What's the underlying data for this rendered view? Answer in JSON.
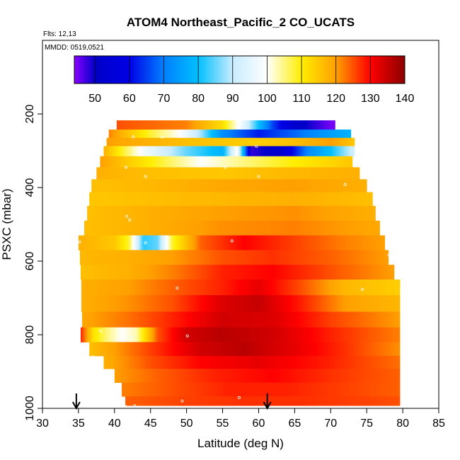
{
  "meta": {
    "flights": "Flts: 12,13",
    "dates": "MMDD: 0519,0521"
  },
  "chart_data": {
    "type": "heatmap",
    "title": "ATOM4 Northeast_Pacific_2 CO_UCATS",
    "xlabel": "Latitude (deg N)",
    "ylabel": "PSXC (mbar)",
    "xlim": [
      30,
      85
    ],
    "ylim": [
      1000,
      0
    ],
    "xticks": [
      "30",
      "35",
      "40",
      "45",
      "50",
      "55",
      "60",
      "65",
      "70",
      "75",
      "80",
      "85"
    ],
    "yticks": [
      "200",
      "400",
      "600",
      "800",
      "1000"
    ],
    "colorbar": {
      "min": 44,
      "max": 140,
      "ticks": [
        "50",
        "60",
        "70",
        "80",
        "90",
        "100",
        "110",
        "120",
        "130",
        "140"
      ],
      "stops": [
        [
          44,
          "#8b00ff"
        ],
        [
          50,
          "#0000c8"
        ],
        [
          60,
          "#0000e6"
        ],
        [
          70,
          "#0080ff"
        ],
        [
          80,
          "#00bfff"
        ],
        [
          90,
          "#c8ecff"
        ],
        [
          100,
          "#ffffff"
        ],
        [
          110,
          "#ffee00"
        ],
        [
          120,
          "#ffa000"
        ],
        [
          130,
          "#ff0000"
        ],
        [
          140,
          "#8b0000"
        ]
      ]
    },
    "arrows_lat": [
      34.7,
      61.2
    ],
    "bands": [
      {
        "p": 230,
        "lat0": 40.3,
        "lat1": 70.6,
        "vals": [
          [
            40.3,
            125
          ],
          [
            50,
            122
          ],
          [
            55,
            112
          ],
          [
            58,
            95
          ],
          [
            60,
            80
          ],
          [
            62,
            65
          ],
          [
            65,
            52
          ],
          [
            70,
            45
          ]
        ]
      },
      {
        "p": 255,
        "lat0": 39.2,
        "lat1": 72.8,
        "vals": [
          [
            39.2,
            122
          ],
          [
            45,
            108
          ],
          [
            49,
            100
          ],
          [
            52,
            88
          ],
          [
            55,
            72
          ],
          [
            60,
            62
          ],
          [
            65,
            68
          ],
          [
            70,
            75
          ],
          [
            72.8,
            78
          ]
        ]
      },
      {
        "p": 275,
        "lat0": 38.9,
        "lat1": 73.3,
        "vals": [
          [
            38.9,
            120
          ],
          [
            44,
            118
          ],
          [
            50,
            116
          ],
          [
            55,
            115
          ],
          [
            60,
            114
          ],
          [
            65,
            116
          ],
          [
            70,
            120
          ],
          [
            73.3,
            115
          ]
        ]
      },
      {
        "p": 300,
        "lat0": 38.5,
        "lat1": 73.3,
        "vals": [
          [
            38.5,
            118
          ],
          [
            44,
            98
          ],
          [
            50,
            85
          ],
          [
            55,
            78
          ],
          [
            57,
            100
          ],
          [
            59,
            48
          ],
          [
            63,
            52
          ],
          [
            67,
            72
          ],
          [
            70,
            80
          ],
          [
            73.3,
            92
          ]
        ]
      },
      {
        "p": 330,
        "lat0": 38.0,
        "lat1": 73.0,
        "vals": [
          [
            38,
            120
          ],
          [
            45,
            110
          ],
          [
            52,
            100
          ],
          [
            58,
            105
          ],
          [
            65,
            110
          ],
          [
            73,
            115
          ]
        ]
      },
      {
        "p": 360,
        "lat0": 37.5,
        "lat1": 74.0,
        "vals": [
          [
            37.5,
            118
          ],
          [
            45,
            116
          ],
          [
            55,
            115
          ],
          [
            65,
            117
          ],
          [
            74,
            118
          ]
        ]
      },
      {
        "p": 395,
        "lat0": 36.8,
        "lat1": 75.0,
        "vals": [
          [
            36.8,
            116
          ],
          [
            45,
            117
          ],
          [
            55,
            119
          ],
          [
            65,
            120
          ],
          [
            75,
            118
          ]
        ]
      },
      {
        "p": 430,
        "lat0": 36.5,
        "lat1": 75.8,
        "vals": [
          [
            36.5,
            115
          ],
          [
            45,
            116
          ],
          [
            55,
            117
          ],
          [
            65,
            118
          ],
          [
            75.8,
            116
          ]
        ]
      },
      {
        "p": 470,
        "lat0": 36.2,
        "lat1": 76.2,
        "vals": [
          [
            36.2,
            116
          ],
          [
            45,
            118
          ],
          [
            55,
            120
          ],
          [
            65,
            121
          ],
          [
            76.2,
            118
          ]
        ]
      },
      {
        "p": 510,
        "lat0": 35.8,
        "lat1": 76.8,
        "vals": [
          [
            35.8,
            116
          ],
          [
            45,
            118
          ],
          [
            55,
            121
          ],
          [
            65,
            122
          ],
          [
            76.8,
            119
          ]
        ]
      },
      {
        "p": 550,
        "lat0": 35.0,
        "lat1": 77.5,
        "vals": [
          [
            35,
            118
          ],
          [
            40,
            115
          ],
          [
            42,
            108
          ],
          [
            44,
            82
          ],
          [
            46,
            85
          ],
          [
            48,
            108
          ],
          [
            52,
            124
          ],
          [
            58,
            130
          ],
          [
            65,
            126
          ],
          [
            72,
            122
          ],
          [
            77.5,
            120
          ]
        ]
      },
      {
        "p": 590,
        "lat0": 35.2,
        "lat1": 78.0,
        "vals": [
          [
            35.2,
            117
          ],
          [
            42,
            118
          ],
          [
            48,
            120
          ],
          [
            55,
            125
          ],
          [
            62,
            127
          ],
          [
            70,
            124
          ],
          [
            78,
            120
          ]
        ]
      },
      {
        "p": 630,
        "lat0": 35.3,
        "lat1": 78.8,
        "vals": [
          [
            35.3,
            116
          ],
          [
            42,
            118
          ],
          [
            48,
            122
          ],
          [
            55,
            128
          ],
          [
            62,
            130
          ],
          [
            70,
            125
          ],
          [
            78.8,
            120
          ]
        ]
      },
      {
        "p": 670,
        "lat0": 35.4,
        "lat1": 79.6,
        "vals": [
          [
            35.4,
            118
          ],
          [
            42,
            120
          ],
          [
            48,
            124
          ],
          [
            55,
            128
          ],
          [
            60,
            132
          ],
          [
            66,
            125
          ],
          [
            72,
            117
          ],
          [
            79.6,
            114
          ]
        ]
      },
      {
        "p": 715,
        "lat0": 35.4,
        "lat1": 79.6,
        "vals": [
          [
            35.4,
            118
          ],
          [
            42,
            121
          ],
          [
            48,
            125
          ],
          [
            55,
            133
          ],
          [
            60,
            135
          ],
          [
            66,
            128
          ],
          [
            72,
            120
          ],
          [
            79.6,
            117
          ]
        ]
      },
      {
        "p": 760,
        "lat0": 35.5,
        "lat1": 79.6,
        "vals": [
          [
            35.5,
            119
          ],
          [
            42,
            123
          ],
          [
            47,
            127
          ],
          [
            55,
            134
          ],
          [
            62,
            133
          ],
          [
            70,
            126
          ],
          [
            79.6,
            120
          ]
        ]
      },
      {
        "p": 800,
        "lat0": 35.3,
        "lat1": 79.6,
        "vals": [
          [
            35.3,
            128
          ],
          [
            37,
            112
          ],
          [
            39,
            105
          ],
          [
            41,
            100
          ],
          [
            43,
            103
          ],
          [
            46,
            125
          ],
          [
            50,
            134
          ],
          [
            55,
            136
          ],
          [
            62,
            134
          ],
          [
            70,
            128
          ],
          [
            79.6,
            122
          ]
        ]
      },
      {
        "p": 840,
        "lat0": 36.5,
        "lat1": 79.6,
        "vals": [
          [
            36.5,
            116
          ],
          [
            40,
            120
          ],
          [
            45,
            126
          ],
          [
            52,
            134
          ],
          [
            58,
            136
          ],
          [
            65,
            132
          ],
          [
            72,
            127
          ],
          [
            79.6,
            121
          ]
        ]
      },
      {
        "p": 875,
        "lat0": 38.5,
        "lat1": 79.6,
        "vals": [
          [
            38.5,
            118
          ],
          [
            45,
            125
          ],
          [
            52,
            130
          ],
          [
            60,
            132
          ],
          [
            70,
            128
          ],
          [
            79.6,
            123
          ]
        ]
      },
      {
        "p": 910,
        "lat0": 40.0,
        "lat1": 79.6,
        "vals": [
          [
            40,
            120
          ],
          [
            46,
            124
          ],
          [
            54,
            128
          ],
          [
            62,
            130
          ],
          [
            70,
            127
          ],
          [
            79.6,
            124
          ]
        ]
      },
      {
        "p": 950,
        "lat0": 41.0,
        "lat1": 79.6,
        "vals": [
          [
            41,
            122
          ],
          [
            48,
            125
          ],
          [
            56,
            128
          ],
          [
            64,
            128
          ],
          [
            72,
            126
          ],
          [
            79.6,
            124
          ]
        ]
      },
      {
        "p": 985,
        "lat0": 41.5,
        "lat1": 79.6,
        "vals": [
          [
            41.5,
            124
          ],
          [
            50,
            126
          ],
          [
            58,
            127
          ],
          [
            66,
            127
          ],
          [
            74,
            126
          ],
          [
            79.6,
            125
          ]
        ]
      }
    ],
    "sample_points": [
      [
        40,
        230
      ],
      [
        42.6,
        262
      ],
      [
        46.6,
        263
      ],
      [
        59.7,
        288
      ],
      [
        41.6,
        345
      ],
      [
        44.3,
        370
      ],
      [
        55.4,
        345
      ],
      [
        60,
        370
      ],
      [
        72,
        392
      ],
      [
        36,
        430
      ],
      [
        41.7,
        478
      ],
      [
        42.1,
        488
      ],
      [
        35.2,
        548
      ],
      [
        44.3,
        550
      ],
      [
        56.3,
        545
      ],
      [
        78.1,
        583
      ],
      [
        48.7,
        673
      ],
      [
        74.4,
        677
      ],
      [
        79.8,
        680
      ],
      [
        38.1,
        790
      ],
      [
        42.4,
        805
      ],
      [
        50.1,
        803
      ],
      [
        37,
        860
      ],
      [
        57.3,
        971
      ],
      [
        49.4,
        980
      ],
      [
        41.5,
        995
      ],
      [
        42.8,
        993
      ],
      [
        79.4,
        997
      ]
    ]
  }
}
